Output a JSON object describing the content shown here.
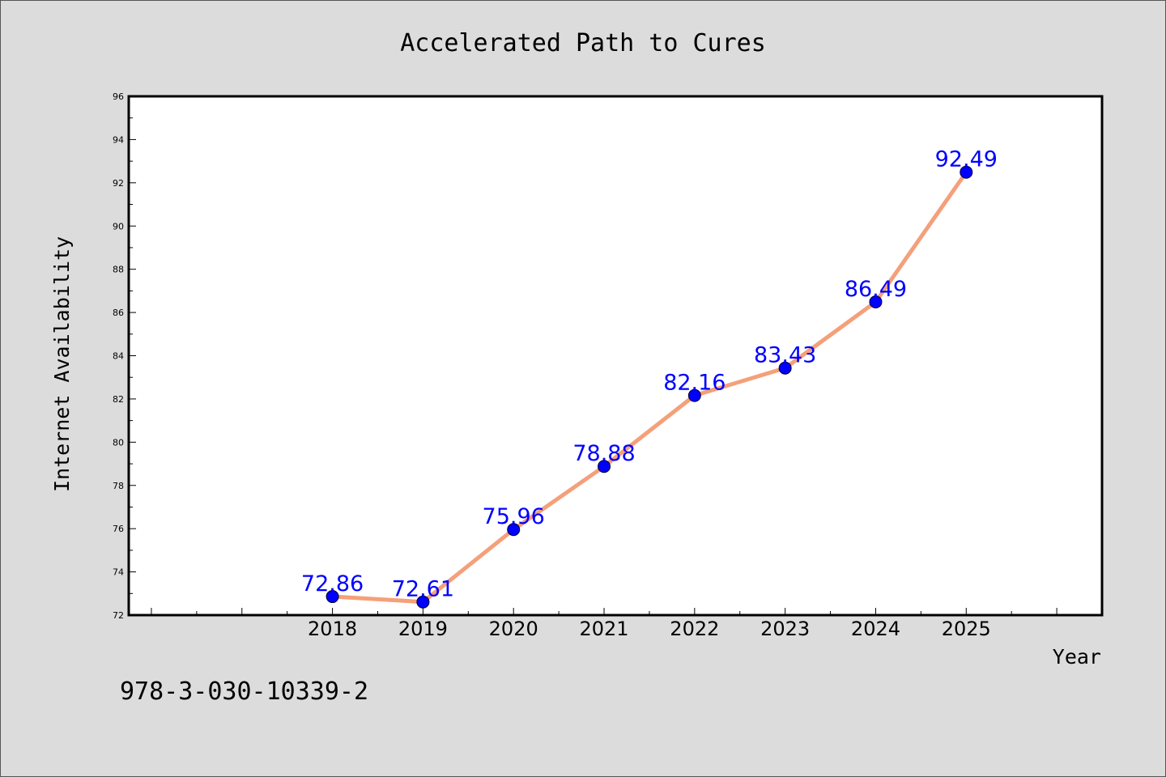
{
  "chart_data": {
    "type": "line",
    "title": "Accelerated Path to Cures",
    "xlabel": "Year",
    "ylabel": "Internet Availability",
    "x": [
      2018,
      2019,
      2020,
      2021,
      2022,
      2023,
      2024,
      2025
    ],
    "x_tick_labels": [
      "2018",
      "2019",
      "2020",
      "2021",
      "2022",
      "2023",
      "2024",
      "2025"
    ],
    "y": [
      72.86,
      72.61,
      75.96,
      78.88,
      82.16,
      83.43,
      86.49,
      92.49
    ],
    "data_labels": [
      "72.86",
      "72.61",
      "75.96",
      "78.88",
      "82.16",
      "83.43",
      "86.49",
      "92.49"
    ],
    "xlim": [
      2015.75,
      2026.5
    ],
    "ylim": [
      72,
      96
    ],
    "y_ticks": [
      72,
      74,
      76,
      78,
      80,
      82,
      84,
      86,
      88,
      90,
      92,
      94,
      96
    ],
    "grid": false,
    "legend": "none",
    "line_color": "#f4a07a",
    "marker_color": "#0000ff",
    "label_color": "#0000ff",
    "background_color": "#dcdcdc",
    "plot_background_color": "#ffffff"
  },
  "footer_text": "978-3-030-10339-2"
}
